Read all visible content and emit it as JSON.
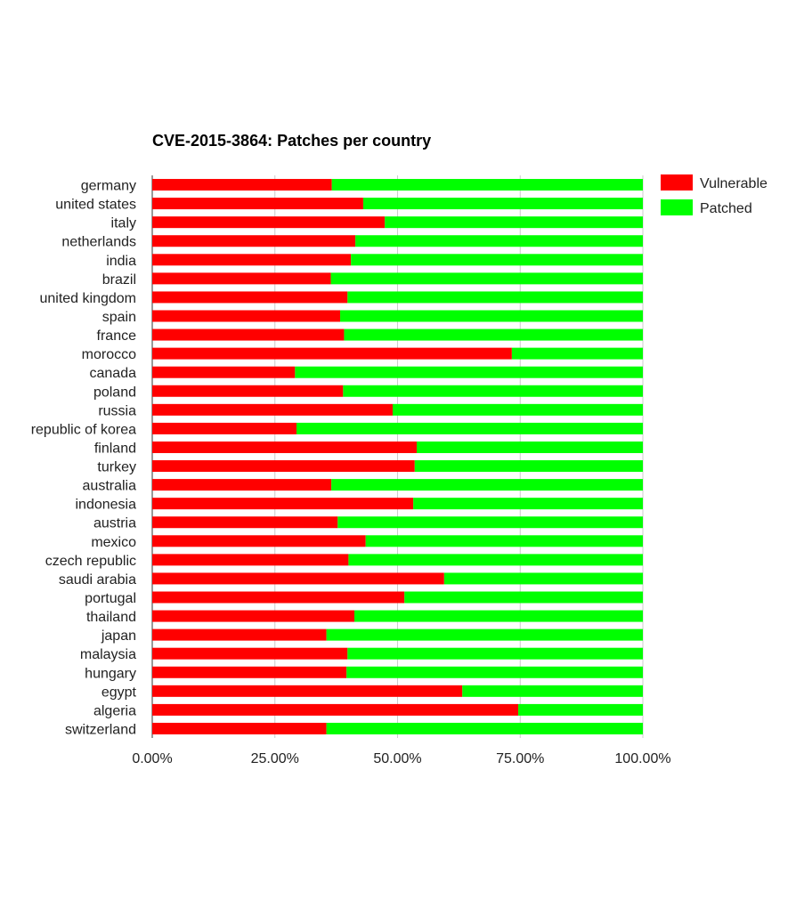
{
  "chart_data": {
    "type": "bar",
    "orientation": "horizontal",
    "stacked": true,
    "title": "CVE-2015-3864: Patches per country",
    "xlabel": "",
    "ylabel": "",
    "xlim": [
      0,
      100
    ],
    "x_ticks": [
      "0.00%",
      "25.00%",
      "50.00%",
      "75.00%",
      "100.00%"
    ],
    "grid": true,
    "legend_position": "right",
    "categories": [
      "germany",
      "united states",
      "italy",
      "netherlands",
      "india",
      "brazil",
      "united kingdom",
      "spain",
      "france",
      "morocco",
      "canada",
      "poland",
      "russia",
      "republic of korea",
      "finland",
      "turkey",
      "australia",
      "indonesia",
      "austria",
      "mexico",
      "czech republic",
      "saudi arabia",
      "portugal",
      "thailand",
      "japan",
      "malaysia",
      "hungary",
      "egypt",
      "algeria",
      "switzerland"
    ],
    "series": [
      {
        "name": "Vulnerable",
        "color": "#ff0000",
        "values": [
          36.6,
          43.0,
          47.4,
          41.4,
          40.5,
          36.4,
          39.8,
          38.3,
          39.1,
          73.3,
          29.1,
          38.9,
          49.0,
          29.4,
          53.9,
          53.5,
          36.5,
          53.2,
          37.8,
          43.5,
          40.0,
          59.5,
          51.4,
          41.2,
          35.5,
          39.8,
          39.6,
          63.2,
          74.6,
          35.5
        ]
      },
      {
        "name": "Patched",
        "color": "#00ff00",
        "values": [
          63.4,
          57.0,
          52.6,
          58.6,
          59.5,
          63.6,
          60.2,
          61.7,
          60.9,
          26.7,
          70.9,
          61.1,
          51.0,
          70.6,
          46.1,
          46.5,
          63.5,
          46.8,
          62.2,
          56.5,
          60.0,
          40.5,
          48.6,
          58.8,
          64.5,
          60.2,
          60.4,
          36.8,
          25.4,
          64.5
        ]
      }
    ]
  }
}
